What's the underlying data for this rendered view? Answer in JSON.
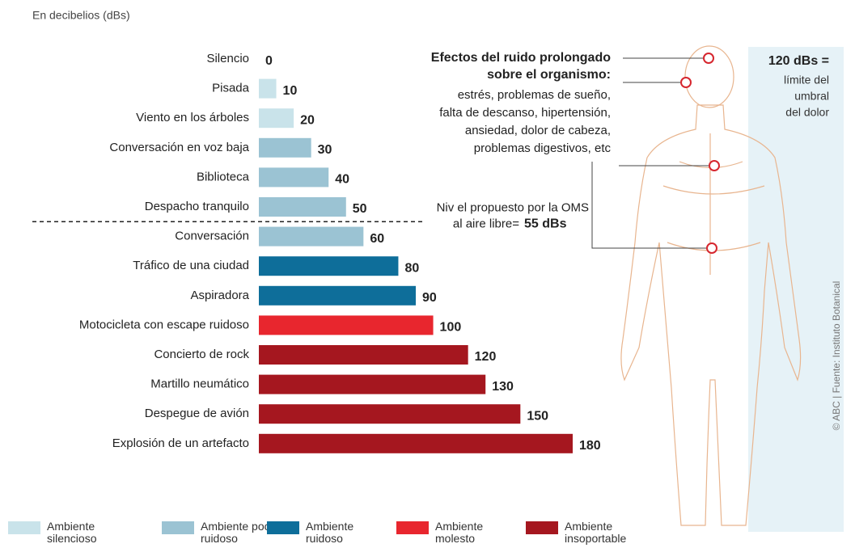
{
  "chart_data": {
    "type": "bar",
    "orientation": "horizontal",
    "subtitle": "En decibelios (dBs)",
    "categories": [
      "Silencio",
      "Pisada",
      "Viento en los árboles",
      "Conversación en voz baja",
      "Biblioteca",
      "Despacho tranquilo",
      "Conversación",
      "Tráfico de una ciudad",
      "Aspiradora",
      "Motocicleta con escape ruidoso",
      "Concierto de rock",
      "Martillo neumático",
      "Despegue de avión",
      "Explosión de un artefacto"
    ],
    "values": [
      0,
      10,
      20,
      30,
      40,
      50,
      60,
      80,
      90,
      100,
      120,
      130,
      150,
      180
    ],
    "colors": [
      "#c9e3ea",
      "#c9e3ea",
      "#c9e3ea",
      "#9bc3d3",
      "#9bc3d3",
      "#9bc3d3",
      "#9bc3d3",
      "#0e6e9a",
      "#0e6e9a",
      "#e8262e",
      "#a5171f",
      "#a5171f",
      "#a5171f",
      "#a5171f"
    ],
    "xlim": [
      0,
      180
    ],
    "legend": [
      {
        "name": "Ambiente silencioso",
        "color": "#c9e3ea"
      },
      {
        "name": "Ambiente poco ruidoso",
        "color": "#9bc3d3"
      },
      {
        "name": "Ambiente ruidoso",
        "color": "#0e6e9a"
      },
      {
        "name": "Ambiente molesto",
        "color": "#e8262e"
      },
      {
        "name": "Ambiente insoportable",
        "color": "#a5171f"
      }
    ],
    "threshold": 55,
    "threshold_note": [
      "Niv el propuesto por la OMS",
      "al aire libre="
    ],
    "threshold_label": "55 dBs",
    "effects_title": [
      "Efectos del ruido prolongado",
      "sobre el  organismo:"
    ],
    "effects_text": [
      "estrés, problemas de sueño,",
      "falta de descanso, hipertensión,",
      "ansiedad, dolor de cabeza,",
      "problemas digestivos, etc"
    ],
    "pain_title": "120 dBs =",
    "pain_text": [
      "límite del",
      "umbral",
      "del dolor"
    ],
    "credit": "© ABC | Fuente: Instituto Botanical"
  }
}
